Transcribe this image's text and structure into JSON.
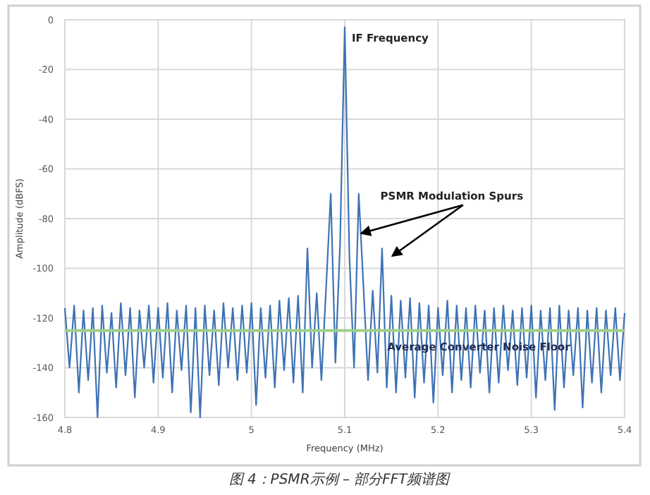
{
  "chart_data": {
    "type": "line",
    "xlabel": "Frequency (MHz)",
    "ylabel": "Amplitude (dBFS)",
    "xlim": [
      4.8,
      5.4
    ],
    "xticks": [
      4.8,
      4.9,
      5,
      5.1,
      5.2,
      5.3,
      5.4
    ],
    "ylim": [
      -160,
      0
    ],
    "yticks": [
      -160,
      -140,
      -120,
      -100,
      -80,
      -60,
      -40,
      -20,
      0
    ],
    "grid": true,
    "series": [
      {
        "color": "#3e72b4",
        "x": [
          4.8,
          4.805,
          4.81,
          4.815,
          4.82,
          4.825,
          4.83,
          4.835,
          4.84,
          4.845,
          4.85,
          4.855,
          4.86,
          4.865,
          4.87,
          4.875,
          4.88,
          4.885,
          4.89,
          4.895,
          4.9,
          4.905,
          4.91,
          4.915,
          4.92,
          4.925,
          4.93,
          4.935,
          4.94,
          4.945,
          4.95,
          4.955,
          4.96,
          4.965,
          4.97,
          4.975,
          4.98,
          4.985,
          4.99,
          4.995,
          5,
          5.005,
          5.01,
          5.015,
          5.02,
          5.025,
          5.03,
          5.035,
          5.04,
          5.045,
          5.05,
          5.055,
          5.06,
          5.065,
          5.07,
          5.075,
          5.08,
          5.085,
          5.09,
          5.095,
          5.1,
          5.105,
          5.11,
          5.115,
          5.12,
          5.125,
          5.13,
          5.135,
          5.14,
          5.145,
          5.15,
          5.155,
          5.16,
          5.165,
          5.17,
          5.175,
          5.18,
          5.185,
          5.19,
          5.195,
          5.2,
          5.205,
          5.21,
          5.215,
          5.22,
          5.225,
          5.23,
          5.235,
          5.24,
          5.245,
          5.25,
          5.255,
          5.26,
          5.265,
          5.27,
          5.275,
          5.28,
          5.285,
          5.29,
          5.295,
          5.3,
          5.305,
          5.31,
          5.315,
          5.32,
          5.325,
          5.33,
          5.335,
          5.34,
          5.345,
          5.35,
          5.355,
          5.36,
          5.365,
          5.37,
          5.375,
          5.38,
          5.385,
          5.39,
          5.395,
          5.4
        ],
        "values": [
          -116,
          -140,
          -115,
          -150,
          -117,
          -145,
          -116,
          -160,
          -115,
          -142,
          -118,
          -148,
          -114,
          -143,
          -116,
          -152,
          -117,
          -140,
          -115,
          -146,
          -116,
          -144,
          -114,
          -150,
          -117,
          -141,
          -115,
          -158,
          -116,
          -160,
          -115,
          -143,
          -117,
          -147,
          -114,
          -140,
          -116,
          -145,
          -115,
          -142,
          -114,
          -155,
          -116,
          -144,
          -115,
          -148,
          -113,
          -141,
          -112,
          -146,
          -111,
          -150,
          -92,
          -140,
          -110,
          -145,
          -108,
          -70,
          -138,
          -90,
          -3,
          -95,
          -140,
          -70,
          -107,
          -145,
          -109,
          -142,
          -92,
          -148,
          -111,
          -150,
          -113,
          -144,
          -112,
          -152,
          -114,
          -146,
          -115,
          -154,
          -116,
          -143,
          -113,
          -150,
          -115,
          -145,
          -116,
          -148,
          -115,
          -142,
          -117,
          -150,
          -116,
          -146,
          -115,
          -141,
          -117,
          -147,
          -116,
          -144,
          -115,
          -152,
          -117,
          -145,
          -116,
          -157,
          -115,
          -148,
          -117,
          -143,
          -116,
          -156,
          -117,
          -146,
          -116,
          -150,
          -117,
          -143,
          -116,
          -145,
          -118
        ]
      }
    ],
    "ref_lines": [
      {
        "axis": "y",
        "value": -125,
        "label": "Average Converter Noise Floor",
        "color": "#9fd08a"
      }
    ],
    "annotations": [
      {
        "text": "IF Frequency",
        "x": 5.1,
        "y": -3
      },
      {
        "text": "PSMR Modulation Spurs",
        "x": 5.115,
        "y": -70
      },
      "图 4：PSMR示例 – 部分FFT频谱图"
    ]
  }
}
